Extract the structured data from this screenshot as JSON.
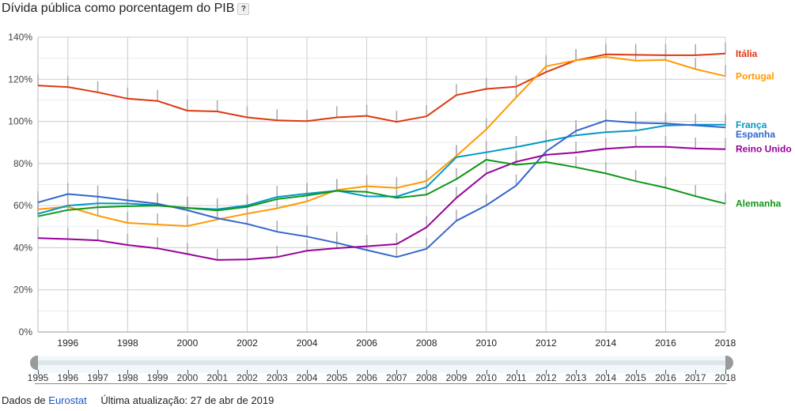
{
  "title": "Dívida pública como porcentagem do PIB",
  "help_label": "?",
  "footer": {
    "source_prefix": "Dados de",
    "source_link": "Eurostat",
    "updated": "Última atualização: 27 de abr de 2019"
  },
  "range_selector": {
    "start": 1995,
    "end": 2018,
    "labels": [
      "1995",
      "1996",
      "1997",
      "1998",
      "1999",
      "2000",
      "2001",
      "2002",
      "2003",
      "2004",
      "2005",
      "2006",
      "2007",
      "2008",
      "2009",
      "2010",
      "2011",
      "2012",
      "2013",
      "2014",
      "2015",
      "2016",
      "2017",
      "2018"
    ]
  },
  "chart_data": {
    "type": "line",
    "title": "Dívida pública como porcentagem do PIB",
    "xlabel": "",
    "ylabel": "",
    "x": [
      1995,
      1996,
      1997,
      1998,
      1999,
      2000,
      2001,
      2002,
      2003,
      2004,
      2005,
      2006,
      2007,
      2008,
      2009,
      2010,
      2011,
      2012,
      2013,
      2014,
      2015,
      2016,
      2017,
      2018
    ],
    "xlim": [
      1995,
      2018
    ],
    "ylim": [
      0,
      140
    ],
    "x_tick_labels": [
      "1996",
      "1998",
      "2000",
      "2002",
      "2004",
      "2006",
      "2008",
      "2010",
      "2012",
      "2014",
      "2016",
      "2018"
    ],
    "x_ticks": [
      1996,
      1998,
      2000,
      2002,
      2004,
      2006,
      2008,
      2010,
      2012,
      2014,
      2016,
      2018
    ],
    "y_ticks": [
      0,
      20,
      40,
      60,
      80,
      100,
      120,
      140
    ],
    "y_tick_labels": [
      "0%",
      "20%",
      "40%",
      "60%",
      "80%",
      "100%",
      "120%",
      "140%"
    ],
    "grid": true,
    "legend_position": "right-end-of-lines",
    "series": [
      {
        "name": "Itália",
        "color": "#dc3912",
        "values": [
          117,
          116.3,
          113.8,
          110.8,
          109.7,
          105.1,
          104.7,
          101.9,
          100.5,
          100.1,
          101.9,
          102.6,
          99.8,
          102.4,
          112.5,
          115.4,
          116.5,
          123.4,
          129,
          131.8,
          131.6,
          131.4,
          131.4,
          132.2
        ]
      },
      {
        "name": "Portugal",
        "color": "#ff9900",
        "values": [
          58.3,
          59.5,
          55.2,
          51.8,
          51,
          50.3,
          53.4,
          56.2,
          58.7,
          62,
          67.4,
          69.2,
          68.4,
          71.7,
          83.6,
          96.2,
          111.4,
          126.2,
          129,
          130.6,
          128.8,
          129.2,
          124.8,
          121.5
        ]
      },
      {
        "name": "França",
        "color": "#0099c6",
        "values": [
          56.1,
          60,
          61.1,
          61,
          60.2,
          58.9,
          58.3,
          60.1,
          64.1,
          65.7,
          67.1,
          64.4,
          64.3,
          68.8,
          83,
          85.3,
          87.8,
          90.6,
          93.4,
          94.9,
          95.6,
          98,
          98.4,
          98.4
        ]
      },
      {
        "name": "Espanha",
        "color": "#3366cc",
        "values": [
          61.5,
          65.5,
          64.3,
          62.5,
          60.9,
          57.8,
          54,
          51.3,
          47.6,
          45.3,
          42.3,
          38.9,
          35.6,
          39.5,
          52.8,
          60.1,
          69.5,
          85.7,
          95.5,
          100.4,
          99.3,
          99,
          98.1,
          97.1
        ]
      },
      {
        "name": "Reino Unido",
        "color": "#990099",
        "values": [
          44.6,
          44.1,
          43.5,
          41.3,
          39.7,
          37,
          34.2,
          34.4,
          35.6,
          38.6,
          39.8,
          40.7,
          41.7,
          49.7,
          63.7,
          75.2,
          80.8,
          84.1,
          85.2,
          87,
          87.9,
          87.9,
          87.1,
          86.8
        ]
      },
      {
        "name": "Alemanha",
        "color": "#109618",
        "values": [
          54.9,
          57.9,
          59.2,
          59.7,
          60,
          58.9,
          57.7,
          59.4,
          63.1,
          64.8,
          67,
          66.5,
          63.7,
          65.2,
          72.6,
          81.8,
          79.4,
          80.7,
          78.2,
          75.3,
          71.6,
          68.5,
          64.5,
          60.9
        ]
      }
    ]
  }
}
